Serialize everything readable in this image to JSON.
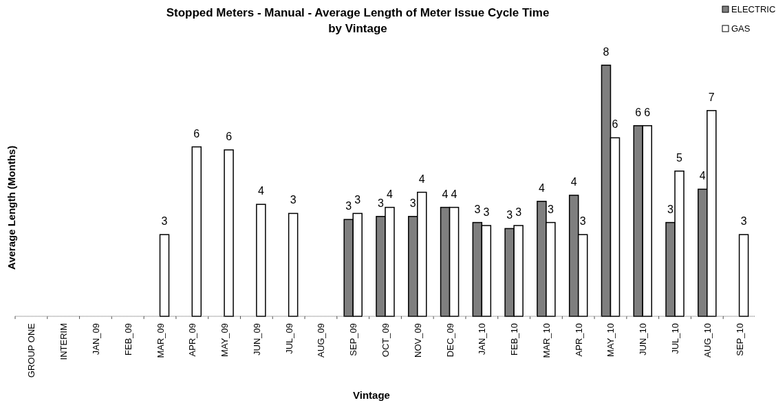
{
  "chart_data": {
    "type": "bar",
    "title": "Stopped Meters - Manual - Average Length of Meter Issue Cycle Time\nby Vintage",
    "xlabel": "Vintage",
    "ylabel": "Average Length (Months)",
    "categories": [
      "GROUP ONE",
      "INTERIM",
      "JAN_09",
      "FEB_09",
      "MAR_09",
      "APR_09",
      "MAY_09",
      "JUN_09",
      "JUL_09",
      "AUG_09",
      "SEP_09",
      "OCT_09",
      "NOV_09",
      "DEC_09",
      "JAN_10",
      "FEB_10",
      "MAR_10",
      "APR_10",
      "MAY_10",
      "JUN_10",
      "JUL_10",
      "AUG_10",
      "SEP_10"
    ],
    "series": [
      {
        "name": "ELECTRIC",
        "color": "#7f7f7f",
        "values": [
          null,
          null,
          null,
          null,
          null,
          null,
          null,
          null,
          null,
          null,
          3.2,
          3.3,
          3.3,
          3.6,
          3.1,
          2.9,
          3.8,
          4.0,
          8.3,
          6.3,
          3.1,
          4.2,
          null
        ],
        "value_labels": [
          null,
          null,
          null,
          null,
          null,
          null,
          null,
          null,
          null,
          null,
          "3",
          "3",
          "3",
          "4",
          "3",
          "3",
          "4",
          "4",
          "8",
          "6",
          "3",
          "4",
          null
        ]
      },
      {
        "name": "GAS",
        "color": "#ffffff",
        "values": [
          null,
          null,
          null,
          null,
          2.7,
          5.6,
          5.5,
          3.7,
          3.4,
          null,
          3.4,
          3.6,
          4.1,
          3.6,
          3.0,
          3.0,
          3.1,
          2.7,
          5.9,
          6.3,
          4.8,
          6.8,
          2.7
        ],
        "value_labels": [
          null,
          null,
          null,
          null,
          "3",
          "6",
          "6",
          "4",
          "3",
          null,
          "3",
          "4",
          "4",
          "4",
          "3",
          "3",
          "3",
          "3",
          "6",
          "6",
          "5",
          "7",
          "3"
        ]
      }
    ],
    "tick_labels": "x",
    "legend": "top right"
  }
}
